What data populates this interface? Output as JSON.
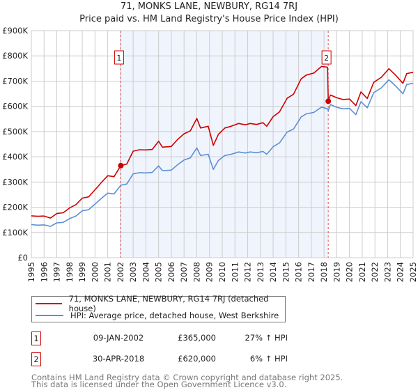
{
  "chart_data": {
    "type": "line",
    "title": "71, MONKS LANE, NEWBURY, RG14 7RJ",
    "subtitle": "Price paid vs. HM Land Registry's House Price Index (HPI)",
    "xlabel": "",
    "ylabel": "",
    "xlim": [
      1995,
      2025
    ],
    "ylim": [
      0,
      900000
    ],
    "grid": true,
    "x_ticks": [
      "1995",
      "1996",
      "1997",
      "1998",
      "1999",
      "2000",
      "2001",
      "2002",
      "2003",
      "2004",
      "2005",
      "2006",
      "2007",
      "2008",
      "2009",
      "2010",
      "2011",
      "2012",
      "2013",
      "2014",
      "2015",
      "2016",
      "2017",
      "2018",
      "2019",
      "2020",
      "2021",
      "2022",
      "2023",
      "2024",
      "2025"
    ],
    "y_ticks": [
      {
        "value": 0,
        "label": "£0"
      },
      {
        "value": 100000,
        "label": "£100K"
      },
      {
        "value": 200000,
        "label": "£200K"
      },
      {
        "value": 300000,
        "label": "£300K"
      },
      {
        "value": 400000,
        "label": "£400K"
      },
      {
        "value": 500000,
        "label": "£500K"
      },
      {
        "value": 600000,
        "label": "£600K"
      },
      {
        "value": 700000,
        "label": "£700K"
      },
      {
        "value": 800000,
        "label": "£800K"
      },
      {
        "value": 900000,
        "label": "£900K"
      }
    ],
    "shaded_range": [
      2002.03,
      2018.33
    ],
    "series": [
      {
        "name": "71, MONKS LANE, NEWBURY, RG14 7RJ (detached house)",
        "color": "#cc0000",
        "x": [
          1995.0,
          1995.5,
          1996.0,
          1996.5,
          1997.0,
          1997.5,
          1998.0,
          1998.5,
          1999.0,
          1999.5,
          2000.0,
          2000.5,
          2001.0,
          2001.5,
          2002.03,
          2002.5,
          2003.0,
          2003.5,
          2004.0,
          2004.5,
          2005.0,
          2005.3,
          2006.0,
          2006.5,
          2007.0,
          2007.5,
          2008.0,
          2008.3,
          2008.9,
          2009.3,
          2009.7,
          2010.2,
          2010.7,
          2011.3,
          2011.8,
          2012.2,
          2012.7,
          2013.2,
          2013.5,
          2014.0,
          2014.5,
          2015.1,
          2015.6,
          2016.2,
          2016.6,
          2017.2,
          2017.8,
          2018.28,
          2018.33,
          2018.5,
          2019.0,
          2019.5,
          2020.0,
          2020.5,
          2020.9,
          2021.4,
          2021.9,
          2022.5,
          2023.1,
          2023.6,
          2024.2,
          2024.5,
          2025.0
        ],
        "y": [
          166000,
          164000,
          165000,
          157000,
          175000,
          178000,
          197000,
          210000,
          236000,
          241000,
          269000,
          298000,
          325000,
          321000,
          365000,
          371000,
          422000,
          428000,
          427000,
          429000,
          462000,
          438000,
          441000,
          469000,
          491000,
          503000,
          552000,
          514000,
          521000,
          445000,
          489000,
          514000,
          521000,
          532000,
          527000,
          532000,
          528000,
          535000,
          521000,
          559000,
          578000,
          632000,
          648000,
          709000,
          724000,
          732000,
          758000,
          755000,
          620000,
          645000,
          634000,
          627000,
          629000,
          603000,
          657000,
          631000,
          695000,
          715000,
          749000,
          725000,
          691000,
          730000,
          735000
        ]
      },
      {
        "name": "HPI: Average price, detached house, West Berkshire",
        "color": "#5b8fd4",
        "x": [
          1995.0,
          1995.5,
          1996.0,
          1996.5,
          1997.0,
          1997.5,
          1998.0,
          1998.5,
          1999.0,
          1999.5,
          2000.0,
          2000.5,
          2001.0,
          2001.5,
          2002.03,
          2002.5,
          2003.0,
          2003.5,
          2004.0,
          2004.5,
          2005.0,
          2005.3,
          2006.0,
          2006.5,
          2007.0,
          2007.5,
          2008.0,
          2008.3,
          2008.9,
          2009.3,
          2009.7,
          2010.2,
          2010.7,
          2011.3,
          2011.8,
          2012.2,
          2012.7,
          2013.2,
          2013.5,
          2014.0,
          2014.5,
          2015.1,
          2015.6,
          2016.2,
          2016.6,
          2017.2,
          2017.8,
          2018.28,
          2018.33,
          2018.5,
          2019.0,
          2019.5,
          2020.0,
          2020.5,
          2020.9,
          2021.4,
          2021.9,
          2022.5,
          2023.1,
          2023.6,
          2024.2,
          2024.5,
          2025.0
        ],
        "y": [
          131000,
          129000,
          130000,
          124000,
          138000,
          140000,
          155000,
          165000,
          186000,
          190000,
          212000,
          235000,
          256000,
          253000,
          287000,
          292000,
          332000,
          337000,
          336000,
          338000,
          364000,
          345000,
          347000,
          369000,
          387000,
          396000,
          435000,
          405000,
          410000,
          350000,
          385000,
          405000,
          410000,
          419000,
          415000,
          419000,
          416000,
          421000,
          410000,
          440000,
          455000,
          498000,
          510000,
          558000,
          570000,
          576000,
          597000,
          590000,
          583000,
          607000,
          596000,
          590000,
          592000,
          567000,
          618000,
          594000,
          654000,
          673000,
          705000,
          682000,
          650000,
          687000,
          691000
        ]
      }
    ],
    "annotations": [
      {
        "label": "1",
        "x": 2002.03,
        "y": 365000
      },
      {
        "label": "2",
        "x": 2018.33,
        "y": 620000
      }
    ]
  },
  "legend": {
    "items": [
      {
        "label": "71, MONKS LANE, NEWBURY, RG14 7RJ (detached house)",
        "color": "#cc0000"
      },
      {
        "label": "HPI: Average price, detached house, West Berkshire",
        "color": "#5b8fd4"
      }
    ]
  },
  "sales": [
    {
      "num": "1",
      "date": "09-JAN-2002",
      "price": "£365,000",
      "hpi": "27% ↑ HPI"
    },
    {
      "num": "2",
      "date": "30-APR-2018",
      "price": "£620,000",
      "hpi": "6% ↑ HPI"
    }
  ],
  "footer": {
    "line1": "Contains HM Land Registry data © Crown copyright and database right 2025.",
    "line2": "This data is licensed under the Open Government Licence v3.0."
  }
}
